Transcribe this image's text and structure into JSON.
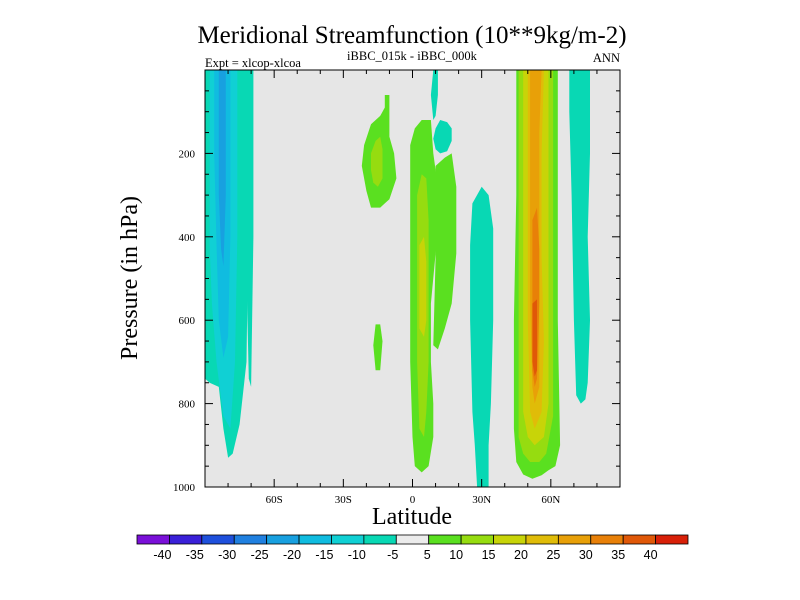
{
  "title": "Meridional Streamfunction (10**9kg/m-2)",
  "subtitle_left": "Expt = xlcop-xlcoa",
  "subtitle_center": "iBBC_015k - iBBC_000k",
  "subtitle_right": "ANN",
  "colors": {
    "background_panel": "#e6e6e6",
    "missing_level": "#ececec",
    "level_-40": "#7a10d8",
    "level_-35": "#3a20d8",
    "level_-30": "#1e50dc",
    "level_-25": "#2080e0",
    "level_-20": "#18a0e0",
    "level_-15": "#10bce0",
    "level_-10": "#10d0d4",
    "level_-5": "#08d8b4",
    "level_5": "#5ae020",
    "level_10": "#96dc10",
    "level_15": "#c8d408",
    "level_20": "#e0bc08",
    "level_25": "#e8a008",
    "level_30": "#e88008",
    "level_35": "#e05808",
    "level_40": "#d82008"
  },
  "chart_data": {
    "type": "heatmap",
    "plot_kind": "filled contour",
    "title": "Meridional Streamfunction (10**9kg/m-2)",
    "xlabel": "Latitude",
    "ylabel": "Pressure (in hPa)",
    "xlim": [
      -90,
      90
    ],
    "ylim": [
      1000,
      0
    ],
    "xticks": [
      -60,
      -30,
      0,
      30,
      60
    ],
    "xtick_labels": [
      "60S",
      "30S",
      "0",
      "30N",
      "60N"
    ],
    "yticks": [
      200,
      400,
      600,
      800,
      1000
    ],
    "ytick_labels": [
      "200",
      "400",
      "600",
      "800",
      "1000"
    ],
    "colorbar": {
      "levels": [
        -40,
        -35,
        -30,
        -25,
        -20,
        -15,
        -10,
        -5,
        5,
        10,
        15,
        20,
        25,
        30,
        35,
        40
      ],
      "labels": [
        "-40",
        "-35",
        "-30",
        "-25",
        "-20",
        "-15",
        "-10",
        "-5",
        "5",
        "10",
        "15",
        "20",
        "25",
        "30",
        "35",
        "40"
      ],
      "colors": [
        "#7a10d8",
        "#3a20d8",
        "#1e50dc",
        "#2080e0",
        "#18a0e0",
        "#10bce0",
        "#10d0d4",
        "#08d8b4",
        "#ececec",
        "#5ae020",
        "#96dc10",
        "#c8d408",
        "#e0bc08",
        "#e8a008",
        "#e88008",
        "#e05808",
        "#d82008"
      ]
    },
    "features": [
      {
        "name": "sh-negative-cell",
        "lat": [
          -90,
          -71
        ],
        "p": [
          0,
          930
        ],
        "min": -25,
        "shells": [
          {
            "level": -5,
            "lat": [
              -90,
              -71
            ]
          },
          {
            "level": -10,
            "lat": [
              -88,
              -76
            ]
          },
          {
            "level": -15,
            "lat": [
              -86,
              -79
            ]
          },
          {
            "level": -20,
            "lat": [
              -84,
              -81
            ]
          }
        ]
      },
      {
        "name": "sh-negative-thin",
        "lat": [
          -72,
          -69
        ],
        "p": [
          0,
          760
        ],
        "min": -5
      },
      {
        "name": "upper-tropical-positive",
        "lat": [
          -22,
          -7
        ],
        "p": [
          60,
          330
        ],
        "max": 10
      },
      {
        "name": "lower-small-positive",
        "lat": [
          -17,
          -13
        ],
        "p": [
          310,
          720
        ],
        "max": 5
      },
      {
        "name": "equatorial-positive",
        "lat": [
          -1,
          9
        ],
        "p": [
          60,
          965
        ],
        "max": 15
      },
      {
        "name": "equatorial-positive-flank",
        "lat": [
          9,
          19
        ],
        "p": [
          200,
          670
        ],
        "max": 5
      },
      {
        "name": "upper-narrow-negative",
        "lat": [
          8,
          11
        ],
        "p": [
          0,
          120
        ],
        "min": -5
      },
      {
        "name": "upper-small-negative",
        "lat": [
          9,
          17
        ],
        "p": [
          80,
          200
        ],
        "min": -5
      },
      {
        "name": "nh-subtropical-negative",
        "lat": [
          25,
          35
        ],
        "p": [
          280,
          1000
        ],
        "min": -5
      },
      {
        "name": "nh-midlatitude-positive",
        "lat": [
          44,
          64
        ],
        "p": [
          0,
          980
        ],
        "max": 35,
        "shells": [
          {
            "level": 5,
            "lat": [
              44,
              64
            ]
          },
          {
            "level": 10,
            "lat": [
              46,
              61
            ]
          },
          {
            "level": 15,
            "lat": [
              48,
              59
            ]
          },
          {
            "level": 20,
            "lat": [
              50,
              57
            ]
          },
          {
            "level": 25,
            "lat": [
              51,
              56
            ]
          },
          {
            "level": 30,
            "lat": [
              52,
              55
            ]
          }
        ]
      },
      {
        "name": "nh-high-latitude-negative",
        "lat": [
          68,
          78
        ],
        "p": [
          0,
          800
        ],
        "min": -5
      }
    ]
  }
}
